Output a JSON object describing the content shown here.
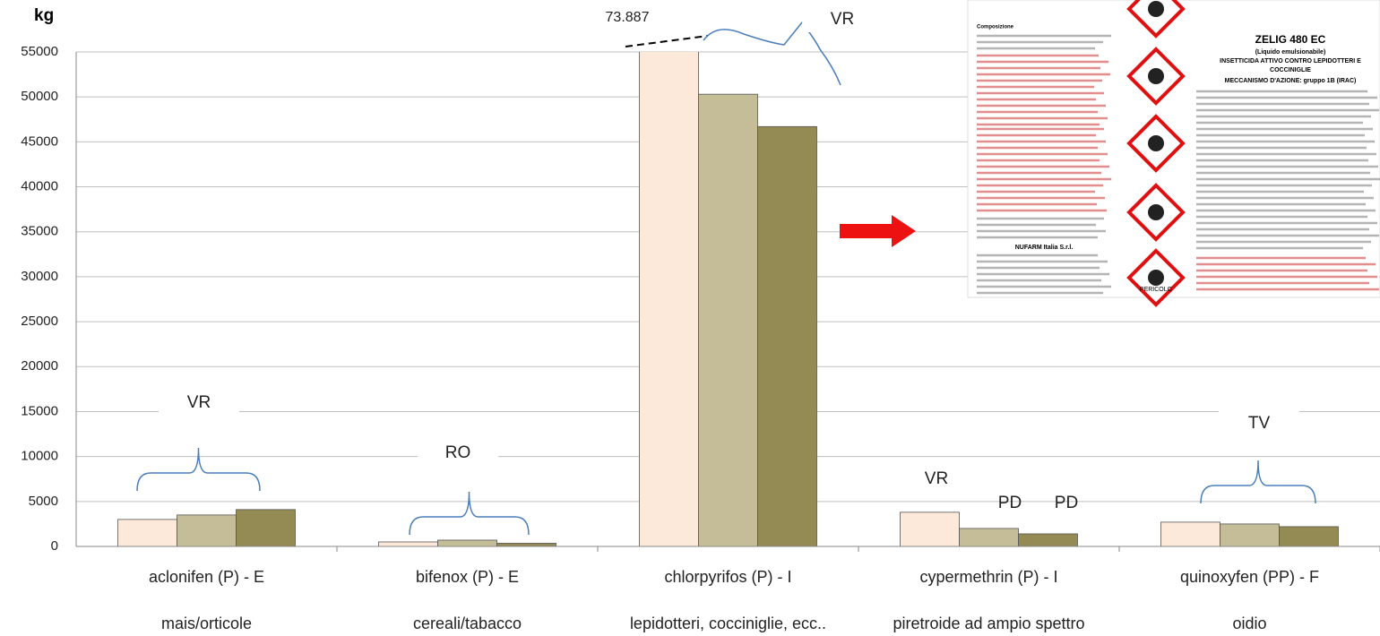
{
  "chart_data": {
    "type": "bar",
    "y_label": "kg",
    "categories": [
      "aclonifen (P) - E",
      "bifenox (P) - E",
      "chlorpyrifos (P) - I",
      "cypermethrin (P) - I",
      "quinoxyfen (PP) - F"
    ],
    "subcategories": [
      "mais/orticole",
      "cereali/tabacco",
      "lepidotteri, coccinigli​e, ecc..",
      "piretroide ad ampio spettro",
      "oidio"
    ],
    "series": [
      {
        "color": "#fde9d9",
        "values": [
          3000,
          500,
          73887,
          3800,
          2700
        ],
        "value_labels": [
          null,
          null,
          "73.887",
          null,
          null
        ]
      },
      {
        "color": "#c4bd97",
        "values": [
          3500,
          700,
          50300,
          2000,
          2500
        ]
      },
      {
        "color": "#948a54",
        "values": [
          4100,
          350,
          46700,
          1400,
          2200
        ]
      }
    ],
    "ylim": [
      0,
      55000
    ],
    "yticks": [
      0,
      5000,
      10000,
      15000,
      20000,
      25000,
      30000,
      35000,
      40000,
      45000,
      50000,
      55000
    ],
    "grid": true,
    "annotations": [
      "VR",
      "RO",
      "VR",
      "VR",
      "PD",
      "PD",
      "TV"
    ]
  },
  "label_image": {
    "product": "ZELIG 480 EC",
    "formulation": "(Liquido emulsionabile)",
    "use": "INSETTICIDA ATTIVO CONTRO LEPIDOTTERI E",
    "use2": "COCCINIGLIE",
    "mechanism": "MECCANISMO D'AZIONE: gruppo 1B (IRAC)",
    "composition": "Composizione",
    "company": "NUFARM Italia S.r.l.",
    "hazard": "PERICOLO"
  }
}
